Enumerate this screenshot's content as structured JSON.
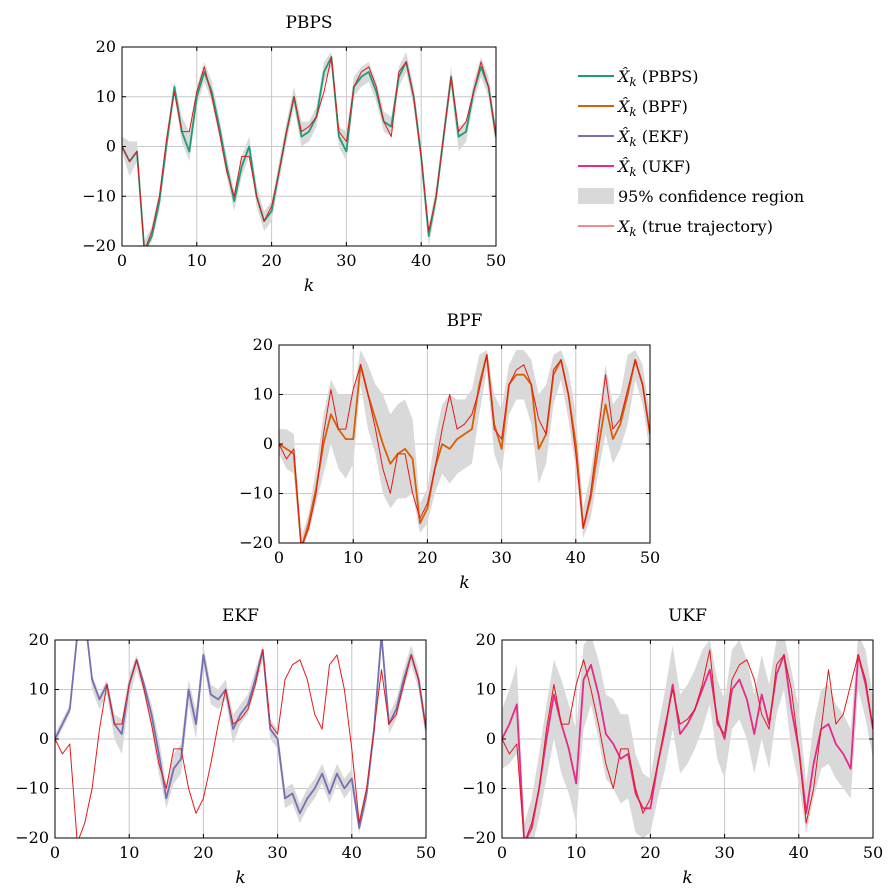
{
  "legend": {
    "items": [
      {
        "label": "X̂k (PBPS)",
        "color": "#1b9e77",
        "kind": "line"
      },
      {
        "label": "X̂k (BPF)",
        "color": "#d95f02",
        "kind": "line"
      },
      {
        "label": "X̂k (EKF)",
        "color": "#7570b3",
        "kind": "line"
      },
      {
        "label": "X̂k (UKF)",
        "color": "#e7298a",
        "kind": "line"
      },
      {
        "label": "95% confidence region",
        "color": "#d9d9d9",
        "kind": "band"
      },
      {
        "label": "Xk (true trajectory)",
        "color": "#e31a1c",
        "kind": "thin"
      }
    ]
  },
  "colors": {
    "truth": "#e31a1c",
    "band": "#d9d9d9",
    "grid": "#c8c8c8"
  },
  "chart_data": [
    {
      "type": "line",
      "title": "PBPS",
      "xlabel": "k",
      "ylabel": "",
      "xlim": [
        0,
        50
      ],
      "ylim": [
        -20,
        20
      ],
      "xticks": [
        0,
        10,
        20,
        30,
        40,
        50
      ],
      "yticks": [
        -20,
        -10,
        0,
        10,
        20
      ],
      "grid": true,
      "x": [
        0,
        1,
        2,
        3,
        4,
        5,
        6,
        7,
        8,
        9,
        10,
        11,
        12,
        13,
        14,
        15,
        16,
        17,
        18,
        19,
        20,
        21,
        22,
        23,
        24,
        25,
        26,
        27,
        28,
        29,
        30,
        31,
        32,
        33,
        34,
        35,
        36,
        37,
        38,
        39,
        40,
        41,
        42,
        43,
        44,
        45,
        46,
        47,
        48,
        49,
        50
      ],
      "truth": [
        0,
        -3,
        -1,
        -21,
        -17,
        -10,
        2,
        11,
        3,
        3,
        11,
        16,
        10,
        3,
        -5,
        -10,
        -2,
        -2,
        -10,
        -15,
        -12,
        -5,
        3,
        10,
        3,
        4,
        6,
        11,
        18,
        3,
        1,
        12,
        15,
        16,
        12,
        5,
        2,
        15,
        17,
        10,
        -2,
        -17,
        -10,
        2,
        14,
        3,
        5,
        11,
        17,
        12,
        2
      ],
      "series": [
        {
          "name": "X̂k (PBPS)",
          "color": "#1b9e77",
          "values": [
            0,
            -3,
            -1,
            -21,
            -18,
            -11,
            1,
            12,
            3,
            -1,
            10,
            15,
            11,
            4,
            -4,
            -11,
            -4,
            0,
            -10,
            -15,
            -13,
            -5,
            3,
            10,
            2,
            3,
            6,
            15,
            18,
            2,
            -1,
            12,
            14,
            15,
            11,
            5,
            4,
            14,
            17,
            10,
            -2,
            -18,
            -10,
            2,
            14,
            2,
            3,
            11,
            16,
            12,
            2
          ],
          "lower": [
            -1,
            -6,
            -3,
            -22,
            -19,
            -13,
            -1,
            10,
            1,
            -3,
            8,
            13,
            9,
            2,
            -6,
            -13,
            -6,
            -2,
            -12,
            -17,
            -15,
            -7,
            1,
            8,
            0,
            1,
            4,
            13,
            16,
            0,
            -3,
            10,
            12,
            13,
            9,
            3,
            2,
            12,
            15,
            8,
            -4,
            -20,
            -12,
            0,
            12,
            -1,
            1,
            9,
            14,
            10,
            0
          ],
          "upper": [
            2,
            1,
            1,
            -19,
            -16,
            -9,
            3,
            13,
            6,
            3,
            12,
            17,
            13,
            6,
            -2,
            -9,
            -2,
            2,
            -8,
            -13,
            -11,
            -3,
            5,
            12,
            5,
            5,
            8,
            17,
            19,
            4,
            3,
            14,
            16,
            17,
            13,
            7,
            6,
            16,
            19,
            12,
            0,
            -16,
            -8,
            4,
            16,
            4,
            5,
            13,
            18,
            14,
            4
          ]
        }
      ]
    },
    {
      "type": "line",
      "title": "BPF",
      "xlabel": "k",
      "ylabel": "",
      "xlim": [
        0,
        50
      ],
      "ylim": [
        -20,
        20
      ],
      "xticks": [
        0,
        10,
        20,
        30,
        40,
        50
      ],
      "yticks": [
        -20,
        -10,
        0,
        10,
        20
      ],
      "grid": true,
      "x": [
        0,
        1,
        2,
        3,
        4,
        5,
        6,
        7,
        8,
        9,
        10,
        11,
        12,
        13,
        14,
        15,
        16,
        17,
        18,
        19,
        20,
        21,
        22,
        23,
        24,
        25,
        26,
        27,
        28,
        29,
        30,
        31,
        32,
        33,
        34,
        35,
        36,
        37,
        38,
        39,
        40,
        41,
        42,
        43,
        44,
        45,
        46,
        47,
        48,
        49,
        50
      ],
      "truth": [
        0,
        -3,
        -1,
        -21,
        -17,
        -10,
        2,
        11,
        3,
        3,
        11,
        16,
        10,
        3,
        -5,
        -10,
        -2,
        -2,
        -10,
        -15,
        -12,
        -5,
        3,
        10,
        3,
        4,
        6,
        11,
        18,
        3,
        1,
        12,
        15,
        16,
        12,
        5,
        2,
        15,
        17,
        10,
        -2,
        -17,
        -10,
        2,
        14,
        3,
        5,
        11,
        17,
        12,
        2
      ],
      "series": [
        {
          "name": "X̂k (BPF)",
          "color": "#d95f02",
          "values": [
            0,
            -1,
            -2,
            -21,
            -16,
            -9,
            0,
            6,
            3,
            1,
            1,
            16,
            10,
            5,
            0,
            -4,
            -2,
            -1,
            -3,
            -16,
            -13,
            -5,
            0,
            -1,
            1,
            2,
            3,
            12,
            18,
            4,
            -1,
            12,
            14,
            14,
            12,
            -1,
            2,
            14,
            17,
            10,
            0,
            -17,
            -11,
            -1,
            8,
            1,
            4,
            10,
            17,
            12,
            2
          ],
          "lower": [
            -2,
            -5,
            -6,
            -22,
            -18,
            -12,
            -6,
            0,
            -5,
            -7,
            -4,
            12,
            3,
            -2,
            -10,
            -13,
            -11,
            -11,
            -10,
            -18,
            -16,
            -10,
            -6,
            -8,
            -6,
            -5,
            -4,
            6,
            15,
            -2,
            -6,
            6,
            9,
            9,
            4,
            -8,
            -4,
            8,
            13,
            5,
            -5,
            -19,
            -15,
            -6,
            2,
            -4,
            -1,
            4,
            13,
            8,
            -2
          ],
          "upper": [
            3,
            3,
            2,
            -19,
            -14,
            -5,
            6,
            13,
            10,
            10,
            10,
            19,
            16,
            12,
            10,
            6,
            8,
            9,
            5,
            -12,
            -9,
            1,
            8,
            10,
            9,
            9,
            11,
            18,
            19,
            10,
            7,
            16,
            19,
            19,
            17,
            10,
            12,
            18,
            19,
            15,
            6,
            -13,
            -6,
            5,
            16,
            8,
            10,
            18,
            19,
            16,
            6
          ]
        }
      ]
    },
    {
      "type": "line",
      "title": "EKF",
      "xlabel": "k",
      "ylabel": "",
      "xlim": [
        0,
        50
      ],
      "ylim": [
        -20,
        20
      ],
      "xticks": [
        0,
        10,
        20,
        30,
        40,
        50
      ],
      "yticks": [
        -20,
        -10,
        0,
        10,
        20
      ],
      "grid": true,
      "x": [
        0,
        1,
        2,
        3,
        4,
        5,
        6,
        7,
        8,
        9,
        10,
        11,
        12,
        13,
        14,
        15,
        16,
        17,
        18,
        19,
        20,
        21,
        22,
        23,
        24,
        25,
        26,
        27,
        28,
        29,
        30,
        31,
        32,
        33,
        34,
        35,
        36,
        37,
        38,
        39,
        40,
        41,
        42,
        43,
        44,
        45,
        46,
        47,
        48,
        49,
        50
      ],
      "truth": [
        0,
        -3,
        -1,
        -21,
        -17,
        -10,
        2,
        11,
        3,
        3,
        11,
        16,
        10,
        3,
        -5,
        -10,
        -2,
        -2,
        -10,
        -15,
        -12,
        -5,
        3,
        10,
        3,
        4,
        6,
        11,
        18,
        3,
        1,
        12,
        15,
        16,
        12,
        5,
        2,
        15,
        17,
        10,
        -2,
        -17,
        -10,
        2,
        14,
        3,
        5,
        11,
        17,
        12,
        2
      ],
      "series": [
        {
          "name": "X̂k (EKF)",
          "color": "#7570b3",
          "values": [
            0,
            3,
            6,
            21,
            25,
            12,
            8,
            11,
            3,
            1,
            11,
            16,
            11,
            5,
            -3,
            -12,
            -6,
            -4,
            10,
            3,
            17,
            9,
            8,
            10,
            2,
            5,
            7,
            12,
            18,
            2,
            0,
            -12,
            -11,
            -15,
            -12,
            -10,
            -7,
            -11,
            -7,
            -10,
            -8,
            -18,
            -11,
            2,
            21,
            3,
            6,
            12,
            17,
            12,
            2
          ],
          "lower": [
            -1,
            2,
            5,
            20,
            24,
            10,
            6,
            9,
            0,
            -3,
            8,
            14,
            9,
            2,
            -7,
            -14,
            -9,
            -7,
            7,
            0,
            15,
            7,
            6,
            8,
            -1,
            3,
            5,
            10,
            16,
            0,
            -2,
            -14,
            -13,
            -17,
            -14,
            -12,
            -9,
            -13,
            -9,
            -12,
            -10,
            -19,
            -13,
            0,
            19,
            1,
            4,
            10,
            15,
            10,
            0
          ],
          "upper": [
            1,
            4,
            7,
            22,
            26,
            13,
            9,
            12,
            5,
            4,
            13,
            17,
            12,
            7,
            0,
            -9,
            -3,
            -1,
            12,
            6,
            19,
            11,
            10,
            12,
            5,
            7,
            9,
            14,
            19,
            4,
            2,
            -10,
            -9,
            -13,
            -10,
            -8,
            -5,
            -9,
            -5,
            -8,
            -6,
            -16,
            -9,
            4,
            22,
            5,
            8,
            14,
            19,
            14,
            4
          ]
        }
      ]
    },
    {
      "type": "line",
      "title": "UKF",
      "xlabel": "k",
      "ylabel": "",
      "xlim": [
        0,
        50
      ],
      "ylim": [
        -20,
        20
      ],
      "xticks": [
        0,
        10,
        20,
        30,
        40,
        50
      ],
      "yticks": [
        -20,
        -10,
        0,
        10,
        20
      ],
      "grid": true,
      "x": [
        0,
        1,
        2,
        3,
        4,
        5,
        6,
        7,
        8,
        9,
        10,
        11,
        12,
        13,
        14,
        15,
        16,
        17,
        18,
        19,
        20,
        21,
        22,
        23,
        24,
        25,
        26,
        27,
        28,
        29,
        30,
        31,
        32,
        33,
        34,
        35,
        36,
        37,
        38,
        39,
        40,
        41,
        42,
        43,
        44,
        45,
        46,
        47,
        48,
        49,
        50
      ],
      "truth": [
        0,
        -3,
        -1,
        -21,
        -17,
        -10,
        2,
        11,
        3,
        3,
        11,
        16,
        10,
        3,
        -5,
        -10,
        -2,
        -2,
        -10,
        -15,
        -12,
        -5,
        3,
        10,
        3,
        4,
        6,
        11,
        18,
        3,
        1,
        12,
        15,
        16,
        12,
        5,
        2,
        15,
        17,
        10,
        -2,
        -17,
        -10,
        2,
        14,
        3,
        5,
        11,
        17,
        12,
        2
      ],
      "series": [
        {
          "name": "X̂k (UKF)",
          "color": "#e7298a",
          "values": [
            0,
            3,
            7,
            -21,
            -18,
            -10,
            0,
            9,
            3,
            -2,
            -9,
            12,
            15,
            9,
            1,
            -1,
            -4,
            -3,
            -11,
            -14,
            -14,
            -5,
            2,
            11,
            1,
            3,
            6,
            10,
            14,
            4,
            0,
            10,
            12,
            8,
            1,
            9,
            3,
            13,
            17,
            6,
            -2,
            -15,
            -5,
            2,
            3,
            -1,
            -3,
            -6,
            17,
            11,
            2
          ],
          "lower": [
            -6,
            -5,
            -3,
            -23,
            -22,
            -16,
            -8,
            0,
            -7,
            -11,
            -17,
            2,
            7,
            0,
            -8,
            -10,
            -13,
            -12,
            -19,
            -20,
            -19,
            -12,
            -6,
            2,
            -7,
            -5,
            -2,
            2,
            7,
            -4,
            -8,
            2,
            4,
            0,
            -7,
            0,
            -6,
            5,
            10,
            -2,
            -9,
            -19,
            -12,
            -6,
            -5,
            -8,
            -10,
            -12,
            10,
            4,
            -4
          ],
          "upper": [
            6,
            10,
            15,
            -17,
            -12,
            -3,
            7,
            16,
            12,
            7,
            2,
            19,
            21,
            16,
            9,
            8,
            5,
            5,
            -3,
            -7,
            -8,
            2,
            10,
            19,
            9,
            11,
            14,
            18,
            20,
            12,
            8,
            18,
            20,
            16,
            9,
            17,
            11,
            20,
            21,
            14,
            6,
            -9,
            3,
            10,
            11,
            7,
            5,
            2,
            21,
            18,
            8
          ]
        }
      ]
    }
  ]
}
